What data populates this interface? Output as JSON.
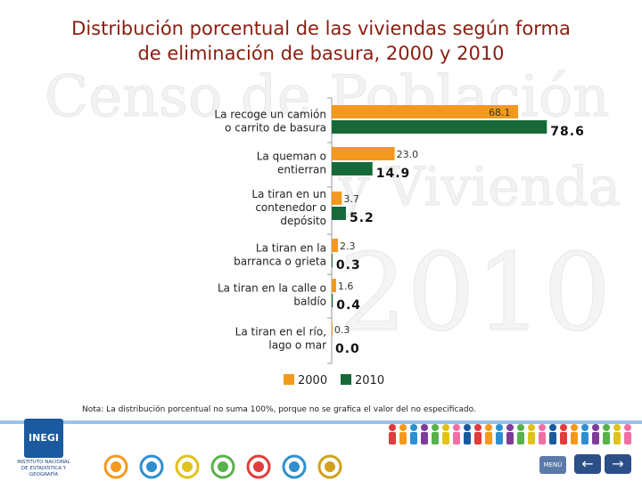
{
  "title_line1": "Distribución porcentual de las viviendas según forma",
  "title_line2": "de eliminación de basura, 2000 y 2010",
  "note": "Nota: La distribución porcentual no suma 100%, porque no se grafica el valor del no especificado.",
  "logo": {
    "text": "INEGI",
    "subtext_line1": "INSTITUTO NACIONAL",
    "subtext_line2": "DE ESTADÍSTICA Y GEOGRAFÍA"
  },
  "watermark": {
    "line1": "Censo de Población",
    "line2": "y Vivienda",
    "line3": "2010"
  },
  "nav": {
    "menu_label": "MENÚ",
    "back_icon": "arrow-left-icon",
    "forward_icon": "arrow-right-icon"
  },
  "colors": {
    "series_2000": "#f39a1e",
    "series_2010": "#17693a",
    "title": "#8a1e0f"
  },
  "chart_data": {
    "type": "bar",
    "orientation": "horizontal",
    "categories": [
      [
        "La recoge un camión",
        "o carrito de basura"
      ],
      [
        "La queman o",
        "entierran"
      ],
      [
        "La tiran en un",
        "contenedor o",
        "depósito"
      ],
      [
        "La tiran en la",
        "barranca o grieta"
      ],
      [
        "La tiran en la calle o",
        "baldío"
      ],
      [
        "La tiran en el río,",
        "lago o mar"
      ]
    ],
    "series": [
      {
        "name": "2000",
        "values": [
          68.1,
          23.0,
          3.7,
          2.3,
          1.6,
          0.3
        ],
        "labels": [
          "68.1",
          "23.0",
          "3.7",
          "2.3",
          "1.6",
          "0.3"
        ]
      },
      {
        "name": "2010",
        "values": [
          78.6,
          14.9,
          5.2,
          0.3,
          0.4,
          0.0
        ],
        "labels": [
          "78.6",
          "14.9",
          "5.2",
          "0.3",
          "0.4",
          "0.0"
        ]
      }
    ],
    "xlim": [
      0,
      80
    ],
    "legend": "bottom"
  }
}
